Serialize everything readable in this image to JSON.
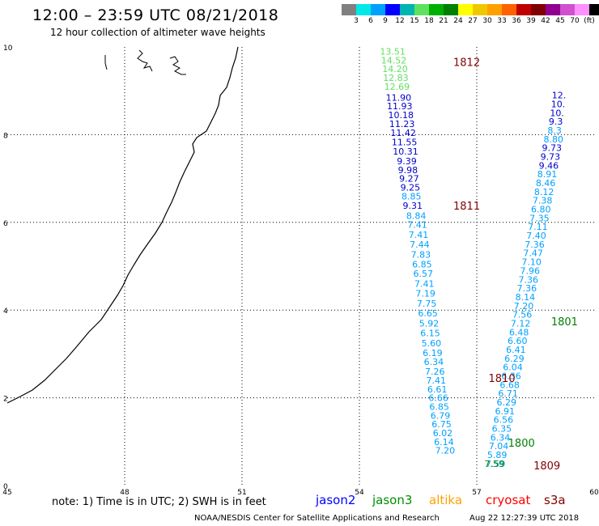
{
  "header": {
    "title": "12:00 – 23:59 UTC 08/21/2018",
    "subtitle": "12 hour collection of altimeter wave heights"
  },
  "legend": {
    "colors": [
      "#808080",
      "#00e8e8",
      "#00a0ff",
      "#0000ff",
      "#00b4b4",
      "#60e060",
      "#00b000",
      "#008000",
      "#ffff00",
      "#f0c800",
      "#ffa000",
      "#ff6000",
      "#c00000",
      "#800000",
      "#900090",
      "#d050d0",
      "#ff90ff",
      "#000000"
    ],
    "labels": [
      "3",
      "6",
      "9",
      "12",
      "15",
      "18",
      "21",
      "24",
      "27",
      "30",
      "33",
      "36",
      "39",
      "42",
      "45",
      "70",
      "(ft)"
    ]
  },
  "axes": {
    "x_ticks": [
      "45",
      "48",
      "51",
      "54",
      "57",
      "60"
    ],
    "y_ticks": [
      "0",
      "2",
      "4",
      "6",
      "8",
      "10"
    ],
    "xlim": [
      45,
      60
    ],
    "ylim": [
      0,
      10
    ]
  },
  "tracks": [
    {
      "label": "1812",
      "label_color": "#800000",
      "label_pos": [
        56.4,
        9.66
      ],
      "points": [
        {
          "lon": 54.85,
          "lat": 9.9,
          "v": "13.51",
          "c": "#60e060"
        },
        {
          "lon": 54.88,
          "lat": 9.7,
          "v": "14.52",
          "c": "#60e060"
        },
        {
          "lon": 54.91,
          "lat": 9.5,
          "v": "14.20",
          "c": "#60e060"
        },
        {
          "lon": 54.93,
          "lat": 9.3,
          "v": "12.83",
          "c": "#60e060"
        },
        {
          "lon": 54.96,
          "lat": 9.1,
          "v": "12.69",
          "c": "#60e060"
        },
        {
          "lon": 55.0,
          "lat": 8.85,
          "v": "11.90",
          "c": "#0000cc"
        },
        {
          "lon": 55.03,
          "lat": 8.65,
          "v": "11.93",
          "c": "#0000cc"
        },
        {
          "lon": 55.06,
          "lat": 8.45,
          "v": "10.18",
          "c": "#0000cc"
        },
        {
          "lon": 55.09,
          "lat": 8.25,
          "v": "11.23",
          "c": "#0000cc"
        },
        {
          "lon": 55.12,
          "lat": 8.04,
          "v": "11.42",
          "c": "#0000cc"
        },
        {
          "lon": 55.15,
          "lat": 7.83,
          "v": "11.55",
          "c": "#0000cc"
        },
        {
          "lon": 55.18,
          "lat": 7.62,
          "v": "10.31",
          "c": "#0000cc"
        },
        {
          "lon": 55.21,
          "lat": 7.4,
          "v": "9.39",
          "c": "#0000cc"
        },
        {
          "lon": 55.24,
          "lat": 7.2,
          "v": "9.98",
          "c": "#0000cc"
        },
        {
          "lon": 55.27,
          "lat": 7.0,
          "v": "9.27",
          "c": "#0000cc"
        },
        {
          "lon": 55.3,
          "lat": 6.8,
          "v": "9.25",
          "c": "#0000cc"
        },
        {
          "lon": 55.33,
          "lat": 6.6,
          "v": "8.85",
          "c": "#00a0ff"
        },
        {
          "lon": 55.36,
          "lat": 6.38,
          "v": "9.31",
          "c": "#0000cc"
        }
      ]
    },
    {
      "label": "1811",
      "label_color": "#800000",
      "label_pos": [
        56.4,
        6.38
      ],
      "points": [
        {
          "lon": 55.45,
          "lat": 6.15,
          "v": "8.84",
          "c": "#00a0ff"
        },
        {
          "lon": 55.48,
          "lat": 5.95,
          "v": "7.41",
          "c": "#00a0ff"
        },
        {
          "lon": 55.51,
          "lat": 5.72,
          "v": "7.41",
          "c": "#00a0ff"
        },
        {
          "lon": 55.54,
          "lat": 5.5,
          "v": "7.44",
          "c": "#00a0ff"
        },
        {
          "lon": 55.57,
          "lat": 5.27,
          "v": "7.83",
          "c": "#00a0ff"
        },
        {
          "lon": 55.6,
          "lat": 5.05,
          "v": "6.85",
          "c": "#00a0ff"
        },
        {
          "lon": 55.63,
          "lat": 4.83,
          "v": "6.57",
          "c": "#00a0ff"
        },
        {
          "lon": 55.66,
          "lat": 4.6,
          "v": "7.41",
          "c": "#00a0ff"
        },
        {
          "lon": 55.69,
          "lat": 4.38,
          "v": "7.19",
          "c": "#00a0ff"
        },
        {
          "lon": 55.72,
          "lat": 4.15,
          "v": "7.75",
          "c": "#00a0ff"
        },
        {
          "lon": 55.75,
          "lat": 3.93,
          "v": "6.65",
          "c": "#00a0ff"
        },
        {
          "lon": 55.78,
          "lat": 3.7,
          "v": "5.92",
          "c": "#00a0ff"
        },
        {
          "lon": 55.81,
          "lat": 3.48,
          "v": "6.15",
          "c": "#00a0ff"
        },
        {
          "lon": 55.84,
          "lat": 3.25,
          "v": "5.60",
          "c": "#00a0ff"
        },
        {
          "lon": 55.87,
          "lat": 3.03,
          "v": "6.19",
          "c": "#00a0ff"
        },
        {
          "lon": 55.9,
          "lat": 2.82,
          "v": "6.34",
          "c": "#00a0ff"
        },
        {
          "lon": 55.93,
          "lat": 2.6,
          "v": "7.26",
          "c": "#00a0ff"
        },
        {
          "lon": 55.96,
          "lat": 2.4,
          "v": "7.41",
          "c": "#00a0ff"
        },
        {
          "lon": 55.99,
          "lat": 2.2,
          "v": "6.61",
          "c": "#00a0ff"
        },
        {
          "lon": 56.02,
          "lat": 2.0,
          "v": "6.66",
          "c": "#00a0ff"
        },
        {
          "lon": 56.04,
          "lat": 1.8,
          "v": "6.85",
          "c": "#00a0ff"
        },
        {
          "lon": 56.07,
          "lat": 1.6,
          "v": "6.79",
          "c": "#00a0ff"
        },
        {
          "lon": 56.1,
          "lat": 1.4,
          "v": "6.75",
          "c": "#00a0ff"
        },
        {
          "lon": 56.13,
          "lat": 1.2,
          "v": "6.02",
          "c": "#00a0ff"
        },
        {
          "lon": 56.16,
          "lat": 1.0,
          "v": "6.14",
          "c": "#00a0ff"
        },
        {
          "lon": 56.19,
          "lat": 0.8,
          "v": "7.20",
          "c": "#00a0ff"
        }
      ]
    },
    {
      "label": "1810",
      "label_color": "#800000",
      "label_pos": [
        57.3,
        2.45
      ],
      "points": [
        {
          "lon": 59.1,
          "lat": 8.9,
          "v": "12.",
          "c": "#0000cc"
        },
        {
          "lon": 59.08,
          "lat": 8.7,
          "v": "10.",
          "c": "#0000cc"
        },
        {
          "lon": 59.05,
          "lat": 8.5,
          "v": "10.",
          "c": "#0000cc"
        },
        {
          "lon": 59.02,
          "lat": 8.3,
          "v": "9.3",
          "c": "#0000cc"
        },
        {
          "lon": 58.99,
          "lat": 8.1,
          "v": "8.3",
          "c": "#00a0ff"
        },
        {
          "lon": 58.96,
          "lat": 7.9,
          "v": "8.80",
          "c": "#00a0ff"
        },
        {
          "lon": 58.92,
          "lat": 7.7,
          "v": "9.73",
          "c": "#0000cc"
        },
        {
          "lon": 58.88,
          "lat": 7.5,
          "v": "9.73",
          "c": "#0000cc"
        },
        {
          "lon": 58.84,
          "lat": 7.3,
          "v": "9.46",
          "c": "#0000cc"
        },
        {
          "lon": 58.8,
          "lat": 7.1,
          "v": "8.91",
          "c": "#00a0ff"
        },
        {
          "lon": 58.76,
          "lat": 6.9,
          "v": "8.46",
          "c": "#00a0ff"
        },
        {
          "lon": 58.72,
          "lat": 6.7,
          "v": "8.12",
          "c": "#00a0ff"
        },
        {
          "lon": 58.68,
          "lat": 6.5,
          "v": "7.38",
          "c": "#00a0ff"
        },
        {
          "lon": 58.64,
          "lat": 6.3,
          "v": "6.80",
          "c": "#00a0ff"
        },
        {
          "lon": 58.6,
          "lat": 6.1,
          "v": "7.35",
          "c": "#00a0ff"
        },
        {
          "lon": 58.56,
          "lat": 5.9,
          "v": "7.11",
          "c": "#00a0ff"
        },
        {
          "lon": 58.52,
          "lat": 5.7,
          "v": "7.40",
          "c": "#00a0ff"
        },
        {
          "lon": 58.48,
          "lat": 5.5,
          "v": "7.36",
          "c": "#00a0ff"
        },
        {
          "lon": 58.44,
          "lat": 5.3,
          "v": "7.47",
          "c": "#00a0ff"
        },
        {
          "lon": 58.4,
          "lat": 5.1,
          "v": "7.10",
          "c": "#00a0ff"
        },
        {
          "lon": 58.36,
          "lat": 4.9,
          "v": "7.96",
          "c": "#00a0ff"
        },
        {
          "lon": 58.32,
          "lat": 4.7,
          "v": "7.36",
          "c": "#00a0ff"
        },
        {
          "lon": 58.28,
          "lat": 4.5,
          "v": "7.36",
          "c": "#00a0ff"
        },
        {
          "lon": 58.24,
          "lat": 4.3,
          "v": "8.14",
          "c": "#00a0ff"
        },
        {
          "lon": 58.2,
          "lat": 4.1,
          "v": "7.20",
          "c": "#00a0ff"
        },
        {
          "lon": 58.16,
          "lat": 3.9,
          "v": "7.56",
          "c": "#00a0ff"
        },
        {
          "lon": 58.12,
          "lat": 3.7,
          "v": "7.12",
          "c": "#00a0ff"
        },
        {
          "lon": 58.08,
          "lat": 3.5,
          "v": "6.48",
          "c": "#00a0ff"
        },
        {
          "lon": 58.04,
          "lat": 3.3,
          "v": "6.60",
          "c": "#00a0ff"
        },
        {
          "lon": 58.0,
          "lat": 3.1,
          "v": "6.41",
          "c": "#00a0ff"
        },
        {
          "lon": 57.96,
          "lat": 2.9,
          "v": "6.29",
          "c": "#00a0ff"
        },
        {
          "lon": 57.92,
          "lat": 2.7,
          "v": "6.04",
          "c": "#00a0ff"
        },
        {
          "lon": 57.88,
          "lat": 2.5,
          "v": "6.36",
          "c": "#00a0ff"
        },
        {
          "lon": 57.84,
          "lat": 2.3,
          "v": "6.68",
          "c": "#00a0ff"
        },
        {
          "lon": 57.8,
          "lat": 2.1,
          "v": "6.71",
          "c": "#00a0ff"
        },
        {
          "lon": 57.76,
          "lat": 1.9,
          "v": "6.29",
          "c": "#00a0ff"
        },
        {
          "lon": 57.72,
          "lat": 1.7,
          "v": "6.91",
          "c": "#00a0ff"
        },
        {
          "lon": 57.68,
          "lat": 1.5,
          "v": "6.56",
          "c": "#00a0ff"
        },
        {
          "lon": 57.64,
          "lat": 1.3,
          "v": "6.35",
          "c": "#00a0ff"
        },
        {
          "lon": 57.6,
          "lat": 1.1,
          "v": "6.34",
          "c": "#00a0ff"
        },
        {
          "lon": 57.56,
          "lat": 0.9,
          "v": "7.04",
          "c": "#00a0ff"
        },
        {
          "lon": 57.52,
          "lat": 0.7,
          "v": "5.89",
          "c": "#00a0ff"
        },
        {
          "lon": 57.48,
          "lat": 0.5,
          "v": "7.59",
          "c": "#00a0ff"
        }
      ]
    },
    {
      "label": "1801",
      "label_color": "#008000",
      "label_pos": [
        58.9,
        3.75
      ],
      "points": []
    },
    {
      "label": "1800",
      "label_color": "#008000",
      "label_pos": [
        57.8,
        0.98
      ],
      "points": [
        {
          "lon": 57.45,
          "lat": 0.5,
          "v": "7.59",
          "c": "#008000"
        }
      ]
    },
    {
      "label": "1809",
      "label_color": "#800000",
      "label_pos": [
        58.45,
        0.46
      ],
      "points": []
    }
  ],
  "footer": {
    "note": "note:  1) Time is in UTC;  2) SWH is in feet",
    "satellites": [
      {
        "name": "jason2",
        "color": "#0000ff"
      },
      {
        "name": "jason3",
        "color": "#009000"
      },
      {
        "name": "altika",
        "color": "#ffa000"
      },
      {
        "name": "cryosat",
        "color": "#ff0000"
      },
      {
        "name": "s3a",
        "color": "#800000"
      }
    ],
    "credit": "NOAA/NESDIS Center for Satellite Applications and Research",
    "timestamp": "Aug 22 12:27:39 UTC 2018"
  }
}
